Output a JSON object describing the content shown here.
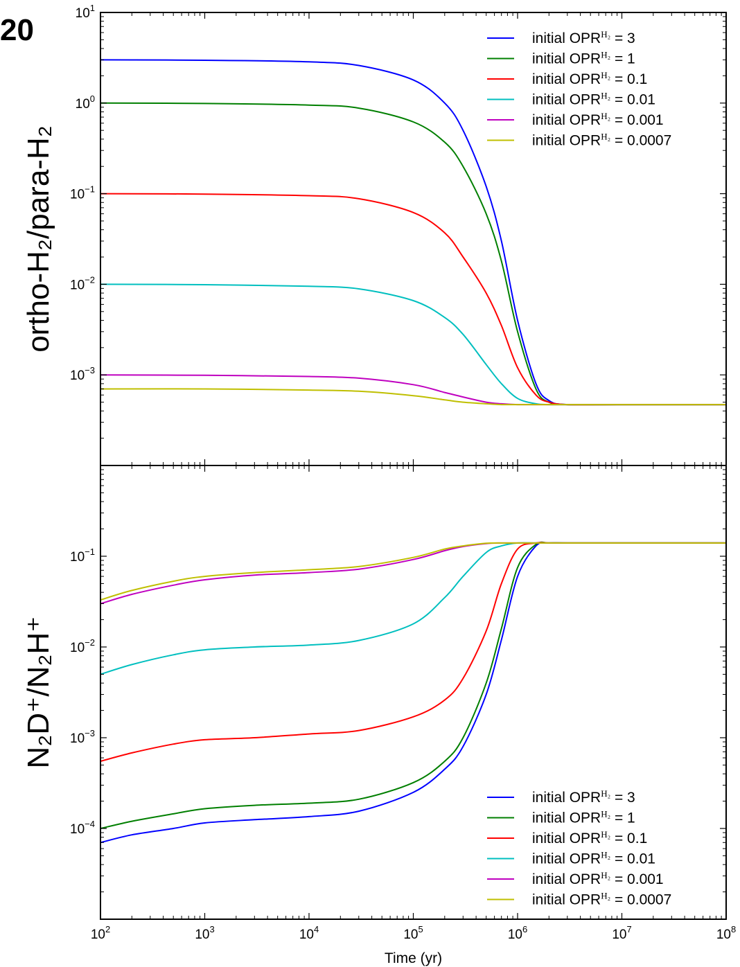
{
  "corner_label": "20",
  "chart_data": [
    {
      "type": "line",
      "panel": "top",
      "title": "",
      "ylabel": "ortho-H₂/para-H₂",
      "xlabel": "",
      "xscale": "log",
      "yscale": "log",
      "xlim": [
        100,
        100000000
      ],
      "ylim": [
        0.0001,
        10
      ],
      "yticks": [
        {
          "value": 10,
          "exp": "1"
        },
        {
          "value": 1,
          "exp": "0"
        },
        {
          "value": 0.1,
          "exp": "−1"
        },
        {
          "value": 0.01,
          "exp": "−2"
        },
        {
          "value": 0.001,
          "exp": "−3"
        }
      ],
      "legend_position": "top-right",
      "grid": false,
      "x": [
        100,
        1000,
        10000,
        30000,
        100000,
        200000,
        300000,
        500000,
        700000,
        1000000,
        1500000,
        2000000,
        3000000,
        10000000,
        100000000
      ],
      "series": [
        {
          "name": "initial OPRᴴ² = 3",
          "label_prefix": "initial OPR",
          "label_sup": "H₂",
          "label_value": " = 3",
          "color": "#0000ff",
          "values": [
            3,
            2.97,
            2.85,
            2.6,
            1.8,
            1.0,
            0.5,
            0.12,
            0.03,
            0.004,
            0.0008,
            0.00052,
            0.00047,
            0.00047,
            0.00047
          ]
        },
        {
          "name": "initial OPRᴴ² = 1",
          "label_prefix": "initial OPR",
          "label_sup": "H₂",
          "label_value": " = 1",
          "color": "#007f00",
          "values": [
            1,
            0.99,
            0.95,
            0.88,
            0.62,
            0.37,
            0.2,
            0.06,
            0.018,
            0.003,
            0.0007,
            0.0005,
            0.00047,
            0.00047,
            0.00047
          ]
        },
        {
          "name": "initial OPRᴴ² = 0.1",
          "label_prefix": "initial OPR",
          "label_sup": "H₂",
          "label_value": " = 0.1",
          "color": "#ff0000",
          "values": [
            0.1,
            0.099,
            0.095,
            0.088,
            0.062,
            0.037,
            0.02,
            0.008,
            0.0035,
            0.0012,
            0.0006,
            0.0005,
            0.00047,
            0.00047,
            0.00047
          ]
        },
        {
          "name": "initial OPRᴴ² = 0.01",
          "label_prefix": "initial OPR",
          "label_sup": "H₂",
          "label_value": " = 0.01",
          "color": "#00bfbf",
          "values": [
            0.01,
            0.0099,
            0.0095,
            0.0089,
            0.0066,
            0.0043,
            0.0028,
            0.0013,
            0.0008,
            0.00055,
            0.00048,
            0.00047,
            0.00047,
            0.00047,
            0.00047
          ]
        },
        {
          "name": "initial OPRᴴ² = 0.001",
          "label_prefix": "initial OPR",
          "label_sup": "H₂",
          "label_value": " = 0.001",
          "color": "#bf00bf",
          "values": [
            0.001,
            0.00099,
            0.00096,
            0.00092,
            0.00078,
            0.00064,
            0.00057,
            0.0005,
            0.00048,
            0.00047,
            0.00047,
            0.00047,
            0.00047,
            0.00047,
            0.00047
          ]
        },
        {
          "name": "initial OPRᴴ² = 0.0007",
          "label_prefix": "initial OPR",
          "label_sup": "H₂",
          "label_value": " = 0.0007",
          "color": "#bfbf00",
          "values": [
            0.0007,
            0.0007,
            0.00068,
            0.00066,
            0.00059,
            0.00053,
            0.0005,
            0.00048,
            0.00047,
            0.00047,
            0.00047,
            0.00047,
            0.00047,
            0.00047,
            0.00047
          ]
        }
      ]
    },
    {
      "type": "line",
      "panel": "bottom",
      "title": "",
      "ylabel": "N₂D⁺/N₂H⁺",
      "xlabel": "Time (yr)",
      "xscale": "log",
      "yscale": "log",
      "xlim": [
        100,
        100000000
      ],
      "ylim": [
        1e-05,
        1
      ],
      "xticks": [
        {
          "value": 100,
          "exp": "2"
        },
        {
          "value": 1000,
          "exp": "3"
        },
        {
          "value": 10000,
          "exp": "4"
        },
        {
          "value": 100000,
          "exp": "5"
        },
        {
          "value": 1000000,
          "exp": "6"
        },
        {
          "value": 10000000,
          "exp": "7"
        },
        {
          "value": 100000000,
          "exp": "8"
        }
      ],
      "yticks": [
        {
          "value": 0.1,
          "exp": "−1"
        },
        {
          "value": 0.01,
          "exp": "−2"
        },
        {
          "value": 0.001,
          "exp": "−3"
        },
        {
          "value": 0.0001,
          "exp": "−4"
        }
      ],
      "legend_position": "bottom-right",
      "grid": false,
      "x": [
        100,
        200,
        500,
        1000,
        3000,
        10000,
        30000,
        100000,
        200000,
        300000,
        500000,
        700000,
        1000000,
        1500000,
        2000000,
        3000000,
        10000000,
        100000000
      ],
      "series": [
        {
          "name": "initial OPRᴴ² = 3",
          "label_prefix": "initial OPR",
          "label_sup": "H₂",
          "label_value": " = 3",
          "color": "#0000ff",
          "values": [
            7e-05,
            8.5e-05,
            0.0001,
            0.000115,
            0.000125,
            0.000135,
            0.000155,
            0.00025,
            0.00045,
            0.0008,
            0.003,
            0.012,
            0.06,
            0.13,
            0.14,
            0.14,
            0.14,
            0.14
          ]
        },
        {
          "name": "initial OPRᴴ² = 1",
          "label_prefix": "initial OPR",
          "label_sup": "H₂",
          "label_value": " = 1",
          "color": "#007f00",
          "values": [
            0.0001,
            0.00012,
            0.000145,
            0.000165,
            0.00018,
            0.00019,
            0.00021,
            0.00032,
            0.00055,
            0.001,
            0.004,
            0.016,
            0.075,
            0.135,
            0.14,
            0.14,
            0.14,
            0.14
          ]
        },
        {
          "name": "initial OPRᴴ² = 0.1",
          "label_prefix": "initial OPR",
          "label_sup": "H₂",
          "label_value": " = 0.1",
          "color": "#ff0000",
          "values": [
            0.00055,
            0.00068,
            0.00085,
            0.00095,
            0.001,
            0.0011,
            0.0012,
            0.0017,
            0.0026,
            0.0045,
            0.015,
            0.05,
            0.12,
            0.14,
            0.14,
            0.14,
            0.14,
            0.14
          ]
        },
        {
          "name": "initial OPRᴴ² = 0.01",
          "label_prefix": "initial OPR",
          "label_sup": "H₂",
          "label_value": " = 0.01",
          "color": "#00bfbf",
          "values": [
            0.005,
            0.0064,
            0.0082,
            0.0093,
            0.01,
            0.0105,
            0.0118,
            0.018,
            0.035,
            0.06,
            0.11,
            0.13,
            0.14,
            0.14,
            0.14,
            0.14,
            0.14,
            0.14
          ]
        },
        {
          "name": "initial OPRᴴ² = 0.001",
          "label_prefix": "initial OPR",
          "label_sup": "H₂",
          "label_value": " = 0.001",
          "color": "#bf00bf",
          "values": [
            0.03,
            0.038,
            0.048,
            0.055,
            0.062,
            0.066,
            0.072,
            0.092,
            0.115,
            0.128,
            0.138,
            0.14,
            0.14,
            0.14,
            0.14,
            0.14,
            0.14,
            0.14
          ]
        },
        {
          "name": "initial OPRᴴ² = 0.0007",
          "label_prefix": "initial OPR",
          "label_sup": "H₂",
          "label_value": " = 0.0007",
          "color": "#bfbf00",
          "values": [
            0.033,
            0.042,
            0.053,
            0.06,
            0.066,
            0.071,
            0.077,
            0.097,
            0.12,
            0.13,
            0.139,
            0.14,
            0.14,
            0.14,
            0.14,
            0.14,
            0.14,
            0.14
          ]
        }
      ]
    }
  ]
}
